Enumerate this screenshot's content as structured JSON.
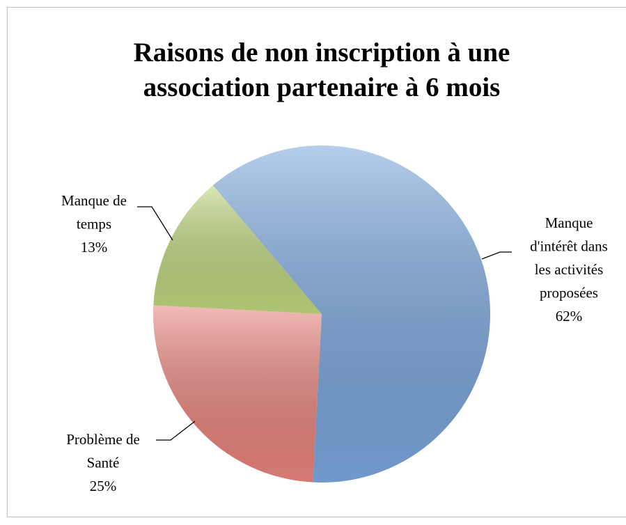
{
  "chart_data": {
    "type": "pie",
    "title": "Raisons de non inscription à une\nassociation partenaire à 6 mois",
    "categories": [
      "Manque\nd'intérêt dans\nles activités\nproposées",
      "Problème de\nSanté",
      "Manque de\ntemps"
    ],
    "values": [
      62,
      25,
      13
    ],
    "value_labels": [
      "62%",
      "25%",
      "13%"
    ],
    "colors": [
      "#7aa6dc",
      "#e9837d",
      "#bed77e"
    ]
  }
}
